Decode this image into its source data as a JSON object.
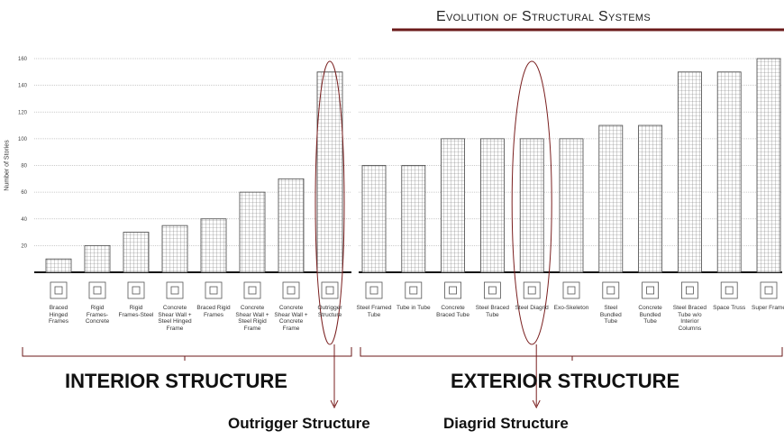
{
  "title": "Evolution of Structural Systems",
  "y_axis_label": "Number of Stories",
  "ylim": [
    0,
    160
  ],
  "yticks": [
    20,
    40,
    60,
    80,
    100,
    120,
    140,
    160
  ],
  "groups": [
    {
      "label": "INTERIOR STRUCTURE",
      "systems": [
        {
          "name": "Braced Hinged Frames",
          "stories": 10
        },
        {
          "name": "Rigid Frames-Concrete",
          "stories": 20
        },
        {
          "name": "Rigid Frames-Steel",
          "stories": 30
        },
        {
          "name": "Concrete Shear Wall + Steel Hinged Frame",
          "stories": 35
        },
        {
          "name": "Braced Rigid Frames",
          "stories": 40
        },
        {
          "name": "Concrete Shear Wall + Steel Rigid Frame",
          "stories": 60
        },
        {
          "name": "Concrete Shear Wall + Concrete Frame",
          "stories": 70
        },
        {
          "name": "Outrigger Structure",
          "stories": 150
        }
      ]
    },
    {
      "label": "EXTERIOR STRUCTURE",
      "systems": [
        {
          "name": "Steel Framed Tube",
          "stories": 80
        },
        {
          "name": "Tube in Tube",
          "stories": 80
        },
        {
          "name": "Concrete Braced Tube",
          "stories": 100
        },
        {
          "name": "Steel Braced Tube",
          "stories": 100
        },
        {
          "name": "Steel Diagrid",
          "stories": 100
        },
        {
          "name": "Exo-Skeleton",
          "stories": 100
        },
        {
          "name": "Steel Bundled Tube",
          "stories": 110
        },
        {
          "name": "Concrete Bundled Tube",
          "stories": 110
        },
        {
          "name": "Steel Braced Tube w/o Interior Columns",
          "stories": 150
        },
        {
          "name": "Space Truss",
          "stories": 150
        },
        {
          "name": "Super Frame",
          "stories": 160
        }
      ]
    }
  ],
  "callouts": [
    "Outrigger Structure",
    "Diagrid Structure"
  ]
}
